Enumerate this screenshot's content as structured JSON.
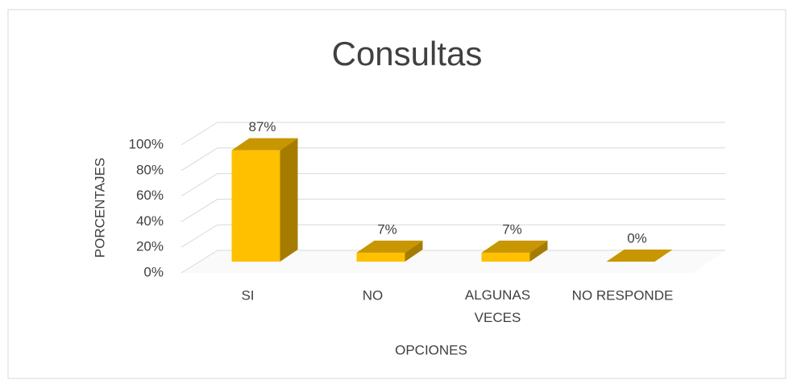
{
  "chart_data": {
    "type": "bar3d",
    "title": "Consultas",
    "categories": [
      "SI",
      "NO",
      "ALGUNAS VECES",
      "NO RESPONDE"
    ],
    "values": [
      87,
      7,
      7,
      0
    ],
    "value_labels": [
      "87%",
      "7%",
      "7%",
      "0%"
    ],
    "color": "#ffc000",
    "ylim": [
      0,
      100
    ],
    "yticks": [
      {
        "value": 0,
        "label": "0%"
      },
      {
        "value": 20,
        "label": "20%"
      },
      {
        "value": 40,
        "label": "40%"
      },
      {
        "value": 60,
        "label": "60%"
      },
      {
        "value": 80,
        "label": "80%"
      },
      {
        "value": 100,
        "label": "100%"
      }
    ],
    "y_label": "PORCENTAJES",
    "x_label": "OPCIONES",
    "grid": true
  }
}
